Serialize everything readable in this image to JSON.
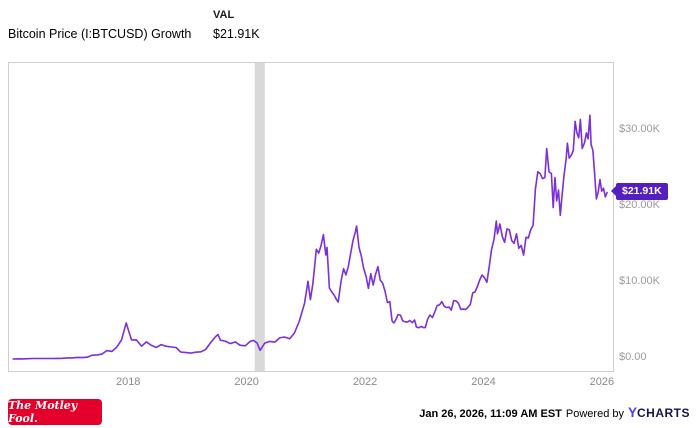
{
  "header": {
    "series_label": "Bitcoin Price (I:BTCUSD) Growth",
    "val_header": "VAL",
    "val_value": "$21.91K"
  },
  "badge": {
    "label": "$21.91K"
  },
  "footer": {
    "fool_logo_text": "The Motley Fool.",
    "timestamp": "Jan 26, 2026, 11:09 AM EST",
    "powered_by": "Powered by",
    "ycharts_y": "Y",
    "ycharts_rest": "CHARTS"
  },
  "colors": {
    "line": "#7b2fda",
    "badge": "#551fbf",
    "band": "#d9d9d9",
    "plot_border": "#cfcfcf",
    "axis_text": "#9b9b9b",
    "fool_red": "#e4002b",
    "ycharts_y": "#4d3df7",
    "ycharts_rest": "#15154b"
  },
  "chart_data": {
    "type": "line",
    "title": "Bitcoin Price (I:BTCUSD) Growth",
    "series_name": "I:BTCUSD Growth",
    "unit": "thousands (K) shown with $ prefix",
    "grid": false,
    "legend": "none",
    "x_range": [
      2015.97,
      2026.17
    ],
    "ylim": [
      0,
      38.9
    ],
    "x_tick_values": [
      2018,
      2020,
      2022,
      2024,
      2026
    ],
    "x_tick_labels": [
      "2018",
      "2020",
      "2022",
      "2024",
      "2026"
    ],
    "y_tick_values": [
      0,
      10,
      20,
      30
    ],
    "y_tick_labels": [
      "$0.00",
      "$10.00K",
      "$20.00K",
      "$30.00K"
    ],
    "recession_band": {
      "x_start": 2020.12,
      "x_end": 2020.29
    },
    "last_value": 21.91,
    "last_point_label": "$21.91K",
    "points": [
      [
        2016.04,
        0.0
      ],
      [
        2016.12,
        0.02
      ],
      [
        2016.21,
        0.01
      ],
      [
        2016.29,
        0.04
      ],
      [
        2016.37,
        0.06
      ],
      [
        2016.46,
        0.07
      ],
      [
        2016.54,
        0.07
      ],
      [
        2016.62,
        0.06
      ],
      [
        2016.71,
        0.06
      ],
      [
        2016.79,
        0.08
      ],
      [
        2016.87,
        0.09
      ],
      [
        2016.96,
        0.15
      ],
      [
        2017.04,
        0.15
      ],
      [
        2017.12,
        0.21
      ],
      [
        2017.21,
        0.18
      ],
      [
        2017.29,
        0.24
      ],
      [
        2017.37,
        0.49
      ],
      [
        2017.46,
        0.54
      ],
      [
        2017.54,
        0.64
      ],
      [
        2017.62,
        1.1
      ],
      [
        2017.71,
        1.0
      ],
      [
        2017.79,
        1.56
      ],
      [
        2017.87,
        2.5
      ],
      [
        2017.95,
        4.75
      ],
      [
        2018.0,
        3.47
      ],
      [
        2018.04,
        2.5
      ],
      [
        2018.12,
        2.53
      ],
      [
        2018.21,
        1.69
      ],
      [
        2018.29,
        2.25
      ],
      [
        2018.37,
        1.81
      ],
      [
        2018.46,
        1.53
      ],
      [
        2018.54,
        1.89
      ],
      [
        2018.62,
        1.69
      ],
      [
        2018.71,
        1.58
      ],
      [
        2018.79,
        1.51
      ],
      [
        2018.87,
        0.92
      ],
      [
        2018.96,
        0.84
      ],
      [
        2019.04,
        0.77
      ],
      [
        2019.12,
        0.9
      ],
      [
        2019.21,
        0.95
      ],
      [
        2019.29,
        1.25
      ],
      [
        2019.37,
        2.09
      ],
      [
        2019.46,
        2.96
      ],
      [
        2019.5,
        3.22
      ],
      [
        2019.54,
        2.48
      ],
      [
        2019.62,
        2.35
      ],
      [
        2019.71,
        2.02
      ],
      [
        2019.79,
        2.25
      ],
      [
        2019.87,
        1.81
      ],
      [
        2019.96,
        1.74
      ],
      [
        2020.04,
        2.3
      ],
      [
        2020.1,
        2.45
      ],
      [
        2020.16,
        2.1
      ],
      [
        2020.21,
        1.15
      ],
      [
        2020.29,
        2.09
      ],
      [
        2020.37,
        2.32
      ],
      [
        2020.46,
        2.22
      ],
      [
        2020.54,
        2.78
      ],
      [
        2020.62,
        2.89
      ],
      [
        2020.71,
        2.66
      ],
      [
        2020.79,
        3.42
      ],
      [
        2020.87,
        4.93
      ],
      [
        2020.96,
        7.3
      ],
      [
        2021.02,
        10.23
      ],
      [
        2021.06,
        7.81
      ],
      [
        2021.1,
        9.85
      ],
      [
        2021.13,
        12.14
      ],
      [
        2021.16,
        14.44
      ],
      [
        2021.2,
        13.93
      ],
      [
        2021.24,
        14.95
      ],
      [
        2021.28,
        16.35
      ],
      [
        2021.32,
        13.68
      ],
      [
        2021.34,
        14.69
      ],
      [
        2021.38,
        9.34
      ],
      [
        2021.42,
        8.83
      ],
      [
        2021.46,
        8.42
      ],
      [
        2021.5,
        7.81
      ],
      [
        2021.53,
        7.5
      ],
      [
        2021.58,
        10.36
      ],
      [
        2021.62,
        11.89
      ],
      [
        2021.66,
        11.07
      ],
      [
        2021.7,
        12.15
      ],
      [
        2021.74,
        13.93
      ],
      [
        2021.78,
        15.59
      ],
      [
        2021.82,
        16.74
      ],
      [
        2021.84,
        17.5
      ],
      [
        2021.88,
        14.7
      ],
      [
        2021.92,
        13.55
      ],
      [
        2021.96,
        11.89
      ],
      [
        2022.0,
        10.87
      ],
      [
        2022.04,
        9.29
      ],
      [
        2022.08,
        11.23
      ],
      [
        2022.12,
        9.72
      ],
      [
        2022.16,
        11.12
      ],
      [
        2022.2,
        12.15
      ],
      [
        2022.24,
        10.36
      ],
      [
        2022.28,
        9.98
      ],
      [
        2022.32,
        8.93
      ],
      [
        2022.36,
        7.43
      ],
      [
        2022.4,
        7.55
      ],
      [
        2022.44,
        5.0
      ],
      [
        2022.47,
        4.75
      ],
      [
        2022.5,
        5.13
      ],
      [
        2022.54,
        5.84
      ],
      [
        2022.58,
        5.77
      ],
      [
        2022.62,
        5.0
      ],
      [
        2022.66,
        4.9
      ],
      [
        2022.7,
        4.85
      ],
      [
        2022.74,
        5.08
      ],
      [
        2022.78,
        4.77
      ],
      [
        2022.82,
        5.13
      ],
      [
        2022.85,
        4.21
      ],
      [
        2022.89,
        4.11
      ],
      [
        2022.93,
        4.29
      ],
      [
        2022.97,
        4.13
      ],
      [
        2023.0,
        4.13
      ],
      [
        2023.04,
        5.26
      ],
      [
        2023.08,
        5.79
      ],
      [
        2023.12,
        5.46
      ],
      [
        2023.16,
        6.18
      ],
      [
        2023.2,
        7.04
      ],
      [
        2023.24,
        7.12
      ],
      [
        2023.28,
        7.55
      ],
      [
        2023.32,
        6.94
      ],
      [
        2023.36,
        6.76
      ],
      [
        2023.4,
        6.84
      ],
      [
        2023.44,
        6.43
      ],
      [
        2023.48,
        7.68
      ],
      [
        2023.52,
        7.63
      ],
      [
        2023.56,
        7.35
      ],
      [
        2023.6,
        6.53
      ],
      [
        2023.64,
        6.56
      ],
      [
        2023.68,
        6.51
      ],
      [
        2023.72,
        6.79
      ],
      [
        2023.76,
        7.17
      ],
      [
        2023.8,
        8.7
      ],
      [
        2023.84,
        8.83
      ],
      [
        2023.88,
        9.54
      ],
      [
        2023.92,
        10.44
      ],
      [
        2023.96,
        11.05
      ],
      [
        2024.0,
        10.69
      ],
      [
        2024.04,
        10.1
      ],
      [
        2024.08,
        12.15
      ],
      [
        2024.12,
        14.44
      ],
      [
        2024.16,
        15.72
      ],
      [
        2024.2,
        18.14
      ],
      [
        2024.22,
        16.48
      ],
      [
        2024.26,
        17.76
      ],
      [
        2024.3,
        16.1
      ],
      [
        2024.34,
        15.36
      ],
      [
        2024.38,
        17.12
      ],
      [
        2024.42,
        16.99
      ],
      [
        2024.46,
        15.59
      ],
      [
        2024.5,
        15.21
      ],
      [
        2024.54,
        16.48
      ],
      [
        2024.58,
        14.57
      ],
      [
        2024.62,
        14.95
      ],
      [
        2024.66,
        13.67
      ],
      [
        2024.7,
        16.02
      ],
      [
        2024.74,
        15.92
      ],
      [
        2024.78,
        16.99
      ],
      [
        2024.82,
        17.6
      ],
      [
        2024.86,
        22.35
      ],
      [
        2024.9,
        24.65
      ],
      [
        2024.94,
        24.39
      ],
      [
        2024.98,
        23.73
      ],
      [
        2025.02,
        23.88
      ],
      [
        2025.05,
        27.7
      ],
      [
        2025.09,
        24.65
      ],
      [
        2025.13,
        24.39
      ],
      [
        2025.16,
        19.92
      ],
      [
        2025.19,
        23.88
      ],
      [
        2025.22,
        20.82
      ],
      [
        2025.25,
        22.22
      ],
      [
        2025.28,
        18.91
      ],
      [
        2025.31,
        21.58
      ],
      [
        2025.34,
        24.01
      ],
      [
        2025.38,
        26.43
      ],
      [
        2025.4,
        28.39
      ],
      [
        2025.43,
        26.43
      ],
      [
        2025.47,
        26.86
      ],
      [
        2025.5,
        27.45
      ],
      [
        2025.53,
        31.28
      ],
      [
        2025.56,
        29.75
      ],
      [
        2025.59,
        29.11
      ],
      [
        2025.62,
        31.53
      ],
      [
        2025.65,
        27.7
      ],
      [
        2025.69,
        28.47
      ],
      [
        2025.72,
        29.75
      ],
      [
        2025.75,
        28.98
      ],
      [
        2025.78,
        32.07
      ],
      [
        2025.8,
        28.21
      ],
      [
        2025.83,
        27.45
      ],
      [
        2025.86,
        24.39
      ],
      [
        2025.89,
        21.07
      ],
      [
        2025.92,
        21.96
      ],
      [
        2025.95,
        23.62
      ],
      [
        2025.98,
        22.09
      ],
      [
        2026.01,
        22.47
      ],
      [
        2026.04,
        21.33
      ],
      [
        2026.07,
        21.91
      ]
    ]
  }
}
